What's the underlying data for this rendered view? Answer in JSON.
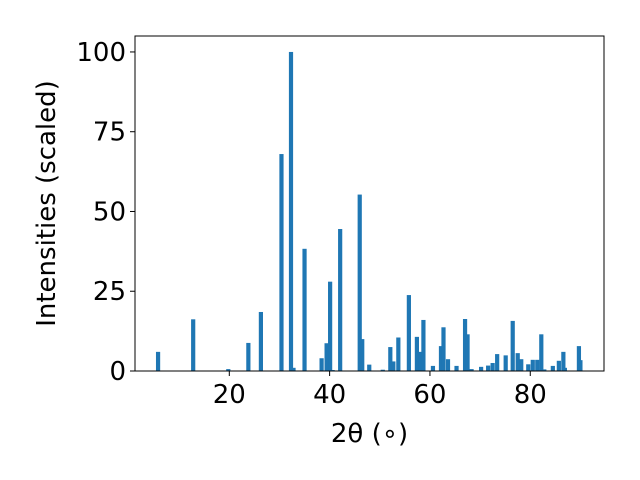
{
  "chart_data": {
    "type": "bar",
    "title": "",
    "xlabel": "2θ (∘)",
    "ylabel": "Intensities (scaled)",
    "xlim": [
      1.2,
      94.7
    ],
    "ylim": [
      0,
      105
    ],
    "xticks": [
      20,
      40,
      60,
      80
    ],
    "yticks": [
      0,
      25,
      50,
      75,
      100
    ],
    "grid": false,
    "bar_color": "#1f77b4",
    "x": [
      5.8,
      12.8,
      19.8,
      23.8,
      26.3,
      30.4,
      32.3,
      32.8,
      35.0,
      38.4,
      39.4,
      40.1,
      40.6,
      42.1,
      46.0,
      46.5,
      47.9,
      50.6,
      52.1,
      52.7,
      53.7,
      55.8,
      57.4,
      58.1,
      58.7,
      60.6,
      62.2,
      62.7,
      63.6,
      65.3,
      67.0,
      67.5,
      68.3,
      70.2,
      71.6,
      72.5,
      73.4,
      75.1,
      76.5,
      77.5,
      78.2,
      79.6,
      80.5,
      81.4,
      82.2,
      82.8,
      84.5,
      85.7,
      86.6,
      86.9,
      89.7,
      90.0
    ],
    "values": [
      6.0,
      16.2,
      0.6,
      8.8,
      18.5,
      68.0,
      100.0,
      1.0,
      38.3,
      4.0,
      8.7,
      28.0,
      0.3,
      44.5,
      55.3,
      10.0,
      2.0,
      0.4,
      7.5,
      3.0,
      10.5,
      23.8,
      10.7,
      6.0,
      16.0,
      1.6,
      7.8,
      13.7,
      3.7,
      1.6,
      16.3,
      11.5,
      0.6,
      1.3,
      1.7,
      2.5,
      5.3,
      4.9,
      15.7,
      5.6,
      3.7,
      2.1,
      3.5,
      3.5,
      11.5,
      0.5,
      1.6,
      3.2,
      6.0,
      1.0,
      7.8,
      3.4
    ]
  }
}
